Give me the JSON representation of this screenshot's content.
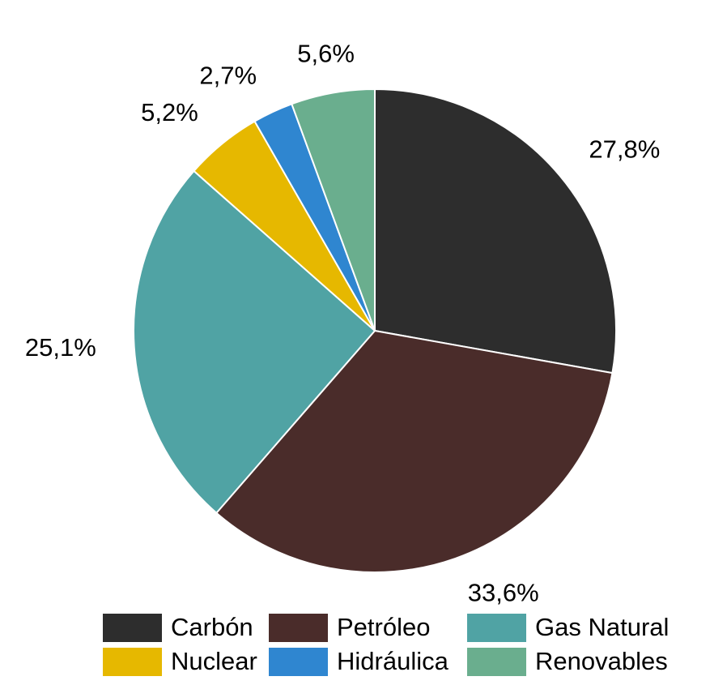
{
  "chart_data": {
    "type": "pie",
    "title": "",
    "start_angle_deg": 0,
    "direction": "clockwise",
    "slices": [
      {
        "name": "Carbón",
        "value": 27.8,
        "label": "27,8%",
        "color": "#2d2d2d"
      },
      {
        "name": "Petróleo",
        "value": 33.6,
        "label": "33,6%",
        "color": "#4a2c2a"
      },
      {
        "name": "Gas Natural",
        "value": 25.1,
        "label": "25,1%",
        "color": "#50a3a4"
      },
      {
        "name": "Nuclear",
        "value": 5.2,
        "label": "5,2%",
        "color": "#e6b800"
      },
      {
        "name": "Hidráulica",
        "value": 2.7,
        "label": "2,7%",
        "color": "#2f86d0"
      },
      {
        "name": "Renovables",
        "value": 5.6,
        "label": "5,6%",
        "color": "#6aae8e"
      }
    ],
    "legend": {
      "placement": "bottom",
      "entries": [
        "Carbón",
        "Petróleo",
        "Gas Natural",
        "Nuclear",
        "Hidráulica",
        "Renovables"
      ]
    }
  }
}
